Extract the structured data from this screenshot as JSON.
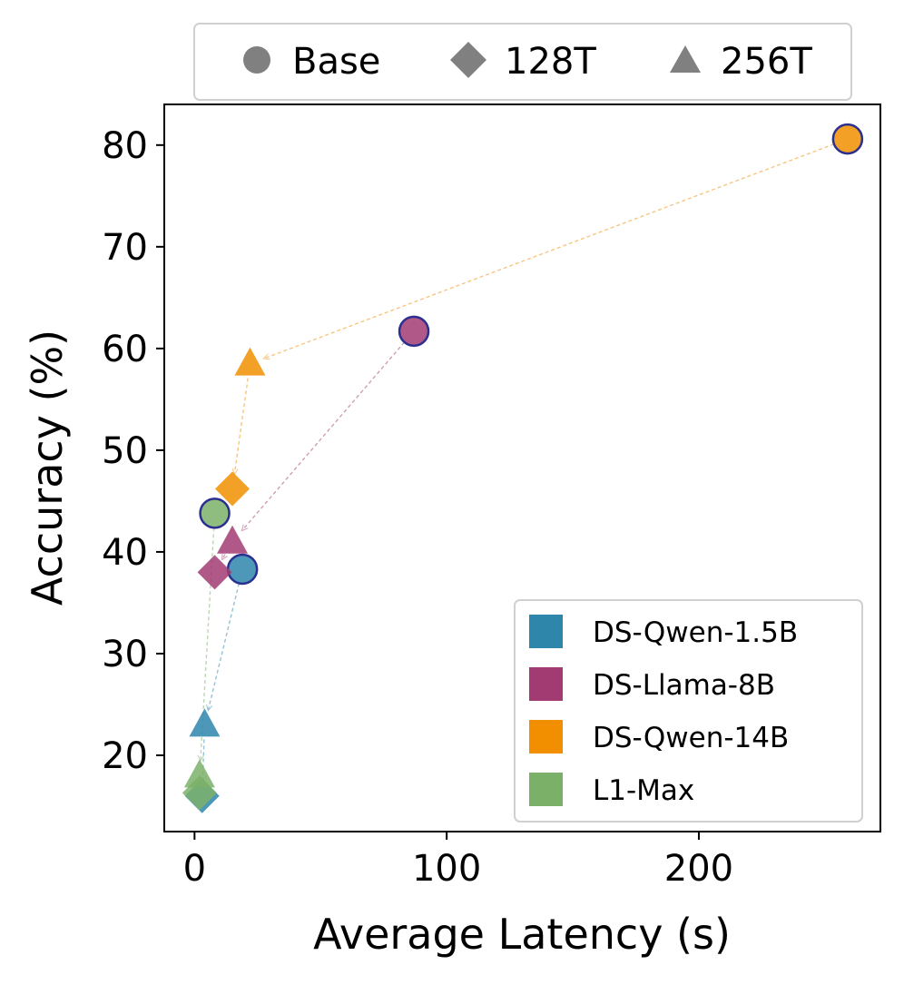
{
  "chart_data": {
    "type": "scatter",
    "xlabel": "Average Latency (s)",
    "ylabel": "Accuracy (%)",
    "xlim": [
      -12,
      272
    ],
    "ylim": [
      12.5,
      84
    ],
    "xticks": [
      0,
      100,
      200
    ],
    "yticks": [
      20,
      30,
      40,
      50,
      60,
      70,
      80
    ],
    "grid": false,
    "marker_legend": {
      "placement": "top-center-outside",
      "entries": [
        {
          "label": "Base",
          "marker": "circle"
        },
        {
          "label": "128T",
          "marker": "diamond"
        },
        {
          "label": "256T",
          "marker": "triangle"
        }
      ]
    },
    "color_legend": {
      "placement": "lower-right",
      "entries": [
        {
          "label": "DS-Qwen-1.5B",
          "color": "#2e86ab"
        },
        {
          "label": "DS-Llama-8B",
          "color": "#a23b72"
        },
        {
          "label": "DS-Qwen-14B",
          "color": "#f18f01"
        },
        {
          "label": "L1-Max",
          "color": "#7bb068"
        }
      ]
    },
    "series": [
      {
        "name": "DS-Qwen-1.5B",
        "color": "#2e86ab",
        "points": [
          {
            "setting": "Base",
            "marker": "circle",
            "x": 19,
            "y": 38.3
          },
          {
            "setting": "256T",
            "marker": "triangle",
            "x": 4,
            "y": 23
          },
          {
            "setting": "128T",
            "marker": "diamond",
            "x": 3,
            "y": 16
          }
        ]
      },
      {
        "name": "DS-Llama-8B",
        "color": "#a23b72",
        "points": [
          {
            "setting": "Base",
            "marker": "circle",
            "x": 87,
            "y": 61.7
          },
          {
            "setting": "256T",
            "marker": "triangle",
            "x": 15,
            "y": 41
          },
          {
            "setting": "128T",
            "marker": "diamond",
            "x": 8,
            "y": 38
          }
        ]
      },
      {
        "name": "DS-Qwen-14B",
        "color": "#f18f01",
        "points": [
          {
            "setting": "Base",
            "marker": "circle",
            "x": 259,
            "y": 80.6
          },
          {
            "setting": "256T",
            "marker": "triangle",
            "x": 22,
            "y": 58.5
          },
          {
            "setting": "128T",
            "marker": "diamond",
            "x": 15,
            "y": 46.2
          }
        ]
      },
      {
        "name": "L1-Max",
        "color": "#7bb068",
        "points": [
          {
            "setting": "Base",
            "marker": "circle",
            "x": 8,
            "y": 43.8
          },
          {
            "setting": "256T",
            "marker": "triangle",
            "x": 2,
            "y": 18
          },
          {
            "setting": "128T",
            "marker": "diamond",
            "x": 2,
            "y": 16.3
          }
        ]
      }
    ]
  }
}
